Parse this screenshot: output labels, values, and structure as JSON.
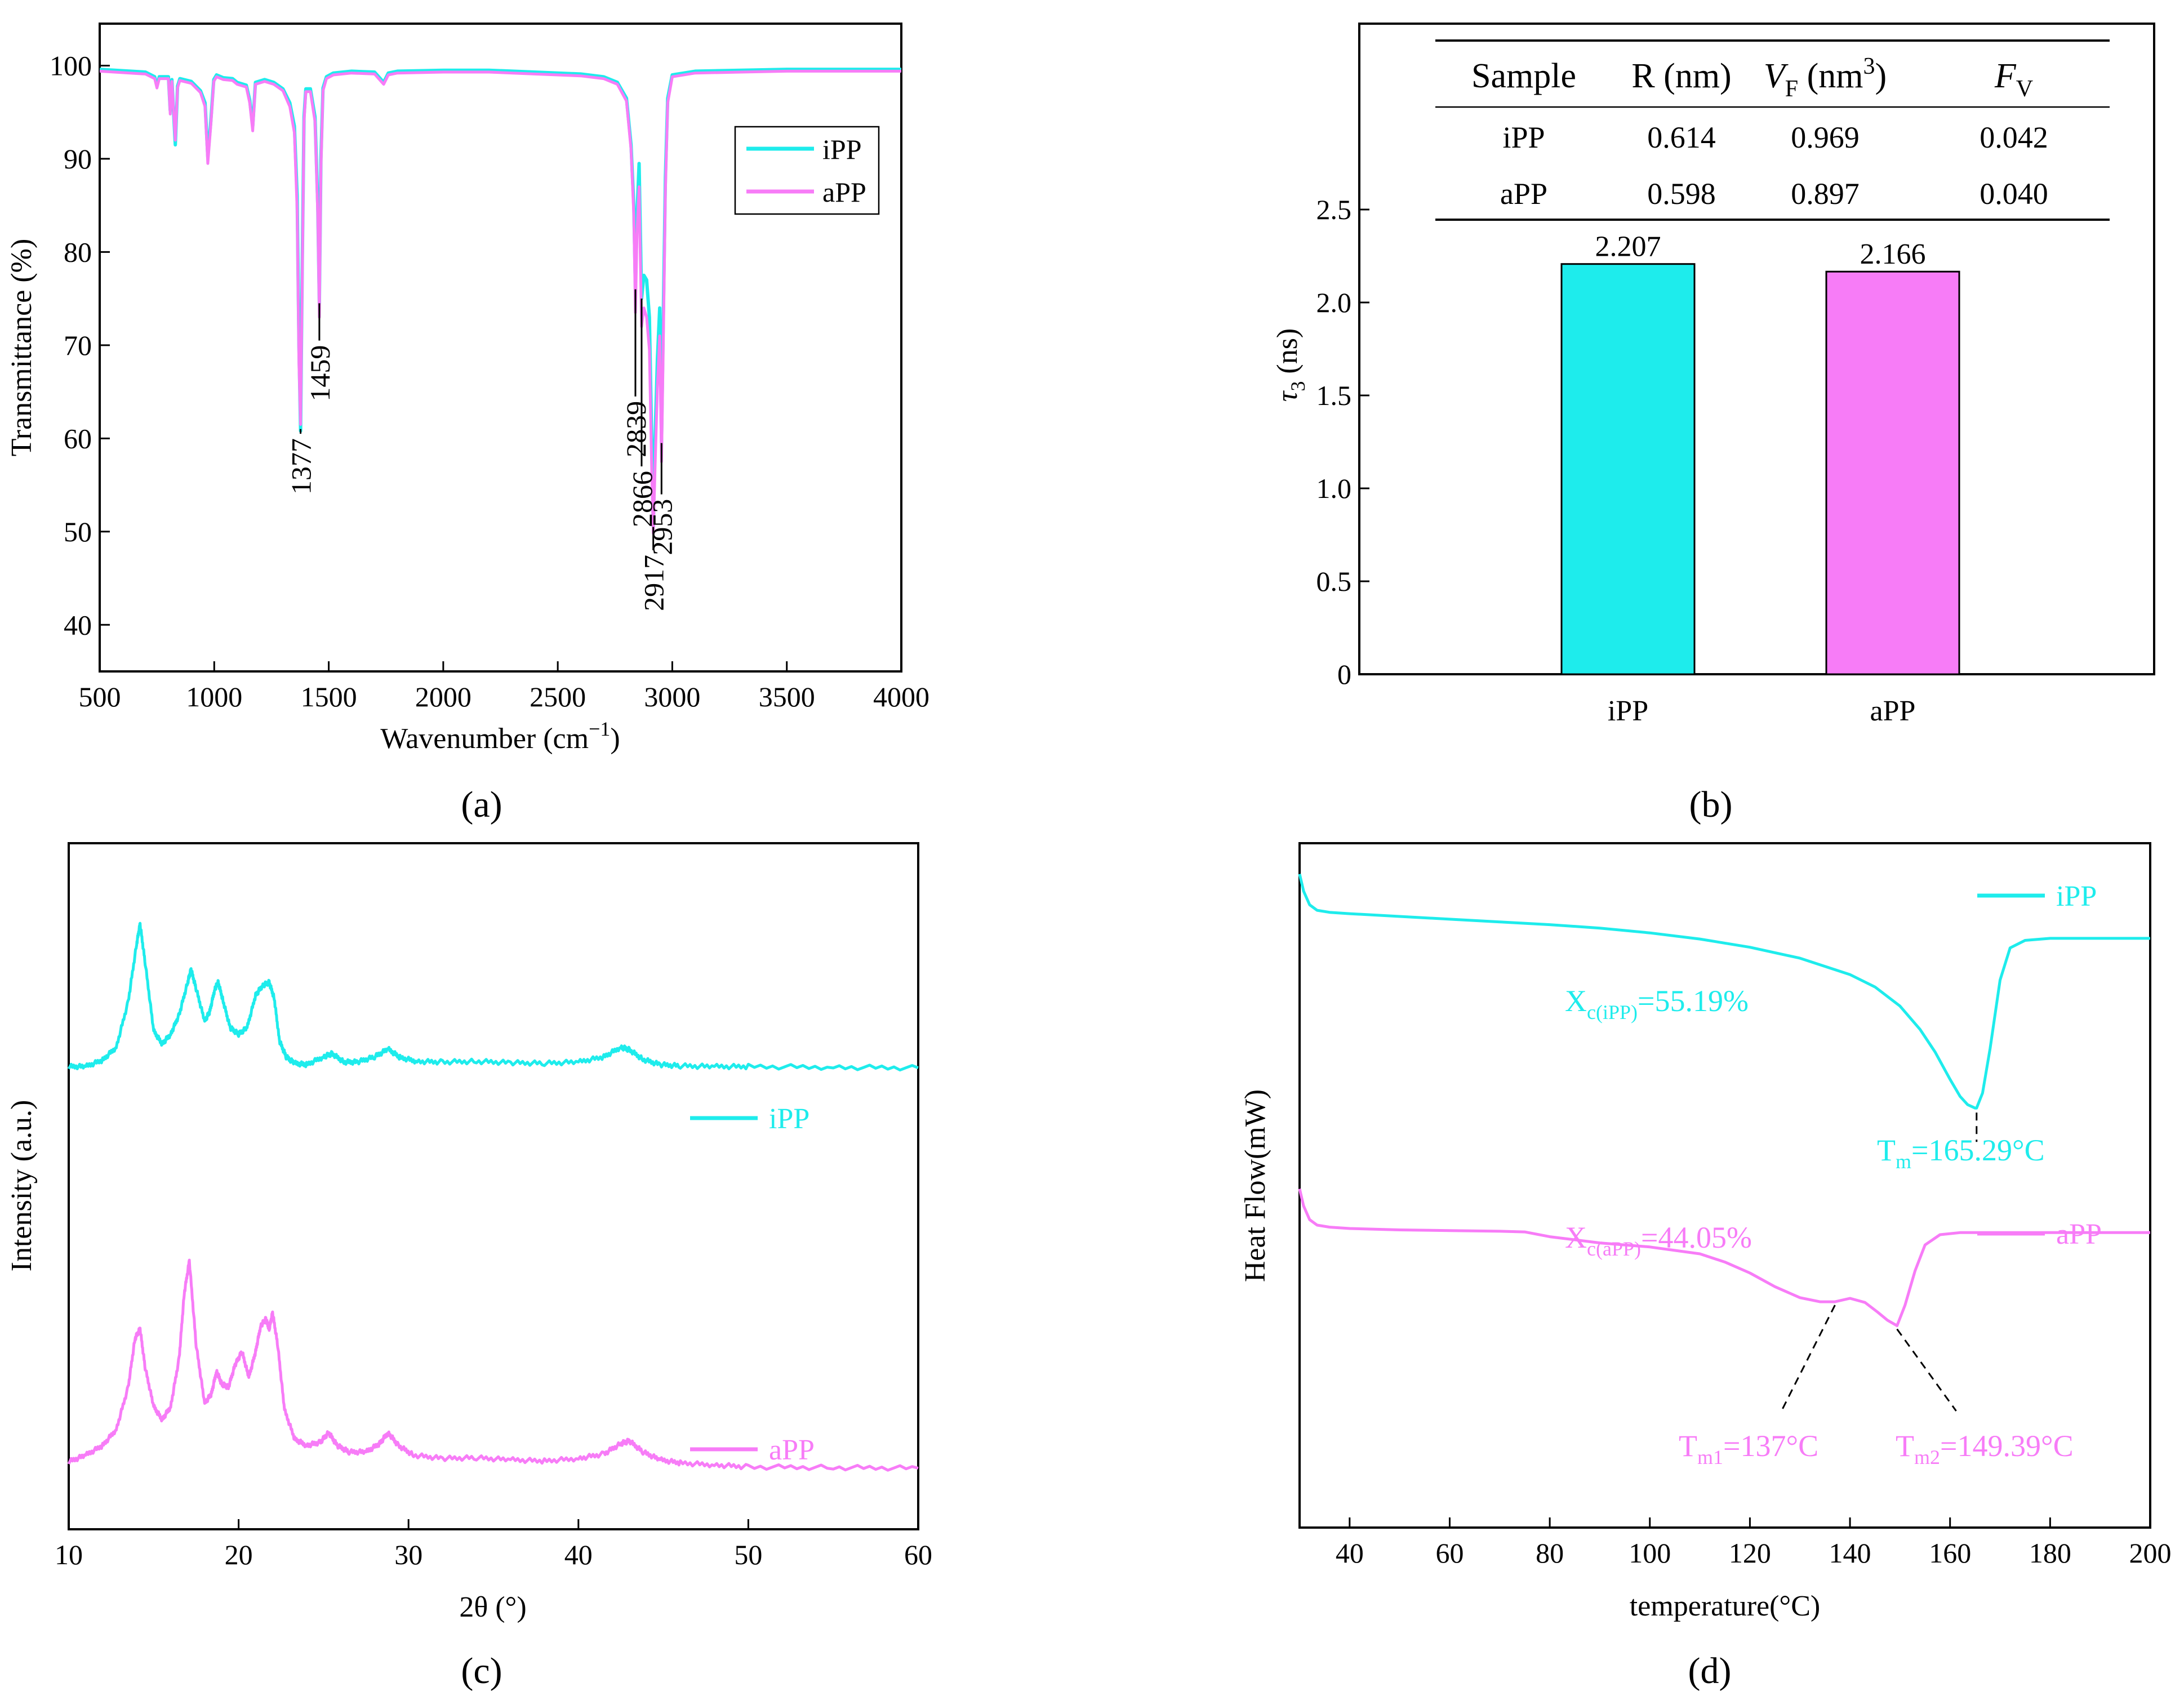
{
  "colors": {
    "ipp": "#1EECEC",
    "app": "#F77CF7",
    "axis": "#000000"
  },
  "chart_data": [
    {
      "panel": "(a)",
      "type": "line",
      "title": "",
      "xlabel": "Wavenumber (cm",
      "xlabel_sup": "−1",
      "xlabel_tail": ")",
      "ylabel": "Transmittance (%)",
      "xlim": [
        500,
        4000
      ],
      "ylim": [
        35,
        104.5
      ],
      "xticks": [
        "500",
        "1000",
        "1500",
        "2000",
        "2500",
        "3000",
        "3500",
        "4000"
      ],
      "yticks": [
        "40",
        "50",
        "60",
        "70",
        "80",
        "90",
        "100"
      ],
      "legend": {
        "position": "top-right",
        "entries": [
          "iPP",
          "aPP"
        ]
      },
      "series": [
        {
          "name": "iPP",
          "x": [
            500,
            700,
            740,
            750,
            760,
            800,
            808,
            815,
            830,
            840,
            850,
            900,
            940,
            960,
            972,
            985,
            998,
            1010,
            1040,
            1080,
            1100,
            1140,
            1155,
            1168,
            1180,
            1220,
            1260,
            1300,
            1330,
            1350,
            1362,
            1370,
            1377,
            1384,
            1392,
            1400,
            1420,
            1440,
            1452,
            1459,
            1466,
            1475,
            1490,
            1520,
            1600,
            1700,
            1740,
            1760,
            1800,
            2000,
            2200,
            2400,
            2600,
            2700,
            2760,
            2800,
            2820,
            2832,
            2839,
            2846,
            2855,
            2866,
            2876,
            2888,
            2900,
            2910,
            2917,
            2925,
            2935,
            2945,
            2953,
            2960,
            2970,
            2980,
            3000,
            3100,
            3300,
            3500,
            3700,
            4000
          ],
          "y": [
            99.6,
            99.3,
            98.8,
            97.8,
            98.8,
            98.8,
            95.2,
            98.5,
            91.5,
            97.8,
            98.6,
            98.3,
            97.3,
            96,
            90.2,
            94,
            98.5,
            99,
            98.7,
            98.6,
            98.2,
            97.9,
            96.3,
            93.5,
            98.2,
            98.5,
            98.2,
            97.5,
            96,
            93.5,
            86,
            70,
            60.8,
            78,
            94.5,
            97.5,
            97.5,
            94.5,
            85,
            74.5,
            90,
            97.6,
            98.8,
            99.2,
            99.4,
            99.3,
            98.2,
            99.2,
            99.4,
            99.5,
            99.5,
            99.3,
            99.1,
            98.8,
            98.2,
            96.5,
            91.5,
            85,
            76,
            84,
            89.5,
            75,
            77.5,
            77,
            73,
            60,
            50.5,
            60,
            68.5,
            74,
            59.5,
            72,
            88,
            96.5,
            99,
            99.4,
            99.5,
            99.6,
            99.6,
            99.6
          ]
        },
        {
          "name": "aPP",
          "x": [
            500,
            700,
            740,
            750,
            760,
            800,
            808,
            815,
            830,
            840,
            850,
            900,
            940,
            960,
            972,
            985,
            998,
            1010,
            1040,
            1080,
            1100,
            1140,
            1155,
            1168,
            1180,
            1220,
            1260,
            1300,
            1330,
            1350,
            1362,
            1370,
            1377,
            1384,
            1392,
            1400,
            1420,
            1440,
            1452,
            1459,
            1466,
            1475,
            1490,
            1520,
            1600,
            1700,
            1740,
            1760,
            1800,
            2000,
            2200,
            2400,
            2600,
            2700,
            2760,
            2800,
            2820,
            2832,
            2839,
            2846,
            2855,
            2866,
            2876,
            2888,
            2900,
            2910,
            2917,
            2925,
            2935,
            2945,
            2953,
            2960,
            2970,
            2980,
            3000,
            3100,
            3300,
            3500,
            3700,
            4000
          ],
          "y": [
            99.4,
            99.1,
            98.6,
            97.6,
            98.6,
            98.6,
            94.8,
            98.3,
            92,
            97.6,
            98.4,
            98.1,
            97.1,
            95.6,
            89.5,
            93.6,
            98.3,
            98.8,
            98.5,
            98.4,
            98,
            97.7,
            96,
            93,
            98,
            98.3,
            98,
            97.3,
            95.6,
            92.8,
            84.5,
            68,
            61.5,
            76.5,
            94,
            97.2,
            97.2,
            94,
            84,
            73,
            89,
            97.3,
            98.6,
            99,
            99.2,
            99.1,
            98,
            99,
            99.2,
            99.3,
            99.3,
            99.1,
            98.9,
            98.6,
            98,
            96.2,
            91,
            84,
            73.5,
            82,
            87,
            72,
            74,
            73,
            69.5,
            57,
            49.8,
            57,
            65.5,
            71,
            57.5,
            69,
            86.5,
            96,
            98.8,
            99.2,
            99.3,
            99.4,
            99.4,
            99.4
          ]
        }
      ],
      "annotations": [
        {
          "text": "1377",
          "x": 1377,
          "y_start": 61,
          "y_end": 60.5
        },
        {
          "text": "1459",
          "x": 1459,
          "y_start": 74.5,
          "y_end": 70.5
        },
        {
          "text": "2839",
          "x": 2839,
          "y_start": 76,
          "y_end": 64.5
        },
        {
          "text": "2866",
          "x": 2866,
          "y_start": 75,
          "y_end": 57
        },
        {
          "text": "2917",
          "x": 2917,
          "y_start": 50.5,
          "y_end": 48
        },
        {
          "text": "2953",
          "x": 2953,
          "y_start": 59.5,
          "y_end": 54
        }
      ]
    },
    {
      "panel": "(b)",
      "type": "bar",
      "title": "",
      "xlabel": "",
      "ylabel": "τ",
      "ylabel_sub": "3",
      "ylabel_tail": " (ns)",
      "categories": [
        "iPP",
        "aPP"
      ],
      "values": [
        2.207,
        2.166
      ],
      "data_labels": [
        "2.207",
        "2.166"
      ],
      "ylim": [
        0,
        3.5
      ],
      "yticks": [
        "0",
        "0.5",
        "1.0",
        "1.5",
        "2.0",
        "2.5"
      ],
      "table": {
        "headers": [
          "Sample",
          "R (nm)",
          "V",
          "F"
        ],
        "header_sub": [
          "",
          "",
          "F",
          "V"
        ],
        "header_tail": [
          "",
          "",
          " (nm",
          ""
        ],
        "header_sup": [
          "",
          "",
          "3",
          ""
        ],
        "header_end": [
          "",
          "",
          ")",
          ""
        ],
        "rows": [
          [
            "iPP",
            "0.614",
            "0.969",
            "0.042"
          ],
          [
            "aPP",
            "0.598",
            "0.897",
            "0.040"
          ]
        ]
      }
    },
    {
      "panel": "(c)",
      "type": "line",
      "title": "",
      "xlabel": "2θ (°)",
      "ylabel": "Intensity (a.u.)",
      "xlim": [
        10,
        60
      ],
      "ylim": [
        0,
        100
      ],
      "xticks": [
        "10",
        "20",
        "30",
        "40",
        "50",
        "60"
      ],
      "yticks": [],
      "series": [
        {
          "name": "iPP",
          "x": [
            10,
            11,
            12,
            12.8,
            13.5,
            14,
            14.2,
            14.5,
            15,
            15.5,
            16,
            16.5,
            17,
            17.2,
            17.5,
            18,
            18.3,
            18.6,
            18.8,
            19.1,
            19.5,
            20,
            20.5,
            21,
            21.4,
            21.8,
            22.1,
            22.4,
            22.8,
            23.3,
            24,
            25,
            25.5,
            26.2,
            27,
            28,
            28.8,
            29.5,
            30.5,
            32,
            34,
            36,
            38,
            40,
            41.5,
            42.5,
            43,
            43.8,
            44.8,
            46,
            48,
            50,
            55,
            60
          ],
          "y": [
            71,
            71,
            72,
            74,
            81,
            90,
            93,
            87,
            76.5,
            74.5,
            76,
            79,
            84,
            86,
            83,
            78,
            79.5,
            83,
            84,
            81,
            77,
            76,
            77,
            82,
            83.5,
            84,
            81.5,
            75,
            72.5,
            71.5,
            71.3,
            72.5,
            73,
            71.7,
            71.7,
            72.5,
            73.7,
            72.4,
            71.8,
            71.7,
            71.8,
            71.6,
            71.5,
            71.7,
            72.5,
            74,
            73.6,
            72.1,
            71.3,
            71.1,
            71,
            71,
            70.9,
            70.8
          ]
        },
        {
          "name": "aPP",
          "x": [
            10,
            11,
            12,
            12.8,
            13.5,
            13.9,
            14.2,
            14.5,
            15,
            15.5,
            16,
            16.5,
            16.8,
            17.1,
            17.5,
            18,
            18.4,
            18.7,
            19,
            19.4,
            19.8,
            20.2,
            20.6,
            21,
            21.3,
            21.6,
            21.8,
            22,
            22.3,
            22.7,
            23.3,
            24,
            24.8,
            25.3,
            25.8,
            26.5,
            27.5,
            28.3,
            28.8,
            29.4,
            30.3,
            32,
            34,
            36,
            38,
            40,
            41.5,
            42.5,
            43,
            43.8,
            44.8,
            46,
            48,
            50,
            55,
            60
          ],
          "y": [
            10,
            11,
            12.5,
            15,
            21.5,
            29,
            30.5,
            24.5,
            18.5,
            16.5,
            18.5,
            26,
            36,
            41,
            28,
            19,
            20.5,
            24,
            22,
            21.5,
            25,
            27,
            23,
            27,
            31,
            32,
            30.5,
            33,
            28,
            18,
            13.5,
            12.5,
            13,
            14.5,
            12.5,
            11.5,
            11.5,
            12.8,
            14.5,
            12.5,
            11,
            10.5,
            10.6,
            10.3,
            10.1,
            10.5,
            11.2,
            12.8,
            13.2,
            11.5,
            10.3,
            9.8,
            9.5,
            9.2,
            9.1,
            9
          ]
        }
      ],
      "legend_entries": [
        "iPP",
        "aPP"
      ]
    },
    {
      "panel": "(d)",
      "type": "line",
      "title": "",
      "xlabel": "temperature(°C)",
      "ylabel": "Heat Flow(mW)",
      "xlim": [
        30,
        200
      ],
      "ylim": [
        0,
        100
      ],
      "xticks": [
        "40",
        "60",
        "80",
        "100",
        "120",
        "140",
        "160",
        "180",
        "200"
      ],
      "yticks": [],
      "series": [
        {
          "name": "iPP",
          "x": [
            30,
            30.8,
            32,
            33.5,
            36,
            40,
            50,
            60,
            70,
            80,
            90,
            100,
            110,
            120,
            130,
            140,
            145,
            150,
            154,
            157,
            160,
            162,
            163.5,
            165,
            165.3,
            166.5,
            168,
            170,
            172,
            175,
            180,
            190,
            200
          ],
          "y": [
            95.5,
            93,
            91,
            90.2,
            89.9,
            89.7,
            89.3,
            88.9,
            88.5,
            88.1,
            87.6,
            86.9,
            86,
            84.8,
            83.2,
            80.8,
            79,
            76.2,
            72.8,
            69.5,
            65.5,
            63,
            61.8,
            61.3,
            61.3,
            63.5,
            70,
            80,
            84.7,
            85.8,
            86.1,
            86.1,
            86.1
          ]
        },
        {
          "name": "aPP",
          "x": [
            30,
            30.8,
            32,
            33.5,
            36,
            40,
            50,
            60,
            70,
            75,
            80,
            90,
            100,
            110,
            115,
            120,
            125,
            130,
            134,
            137,
            140,
            143,
            145.5,
            147.5,
            149.4,
            151,
            153,
            155,
            158,
            162,
            170,
            180,
            200
          ],
          "y": [
            49.5,
            47,
            45,
            44.2,
            43.9,
            43.7,
            43.5,
            43.4,
            43.3,
            43.2,
            42.5,
            41.6,
            41,
            40,
            38.8,
            37.2,
            35.2,
            33.6,
            33,
            33,
            33.5,
            32.9,
            31.5,
            30.3,
            29.5,
            32.5,
            37.5,
            41.3,
            42.8,
            43.1,
            43.1,
            43.1,
            43.1
          ]
        }
      ],
      "annotations": [
        {
          "text": "X",
          "sub": "c(iPP)",
          "tail": "=55.19%",
          "series": "iPP"
        },
        {
          "text": "T",
          "sub": "m",
          "tail": "=165.29°C",
          "x": 165.3,
          "series": "iPP"
        },
        {
          "text": "X",
          "sub": "c(aPP)",
          "tail": "=44.05%",
          "series": "aPP"
        },
        {
          "text": "T",
          "sub": "m1",
          "tail": "=137°C",
          "x": 137,
          "series": "aPP"
        },
        {
          "text": "T",
          "sub": "m2",
          "tail": "=149.39°C",
          "x": 149.4,
          "series": "aPP"
        }
      ],
      "legend_entries": [
        "iPP",
        "aPP"
      ]
    }
  ]
}
